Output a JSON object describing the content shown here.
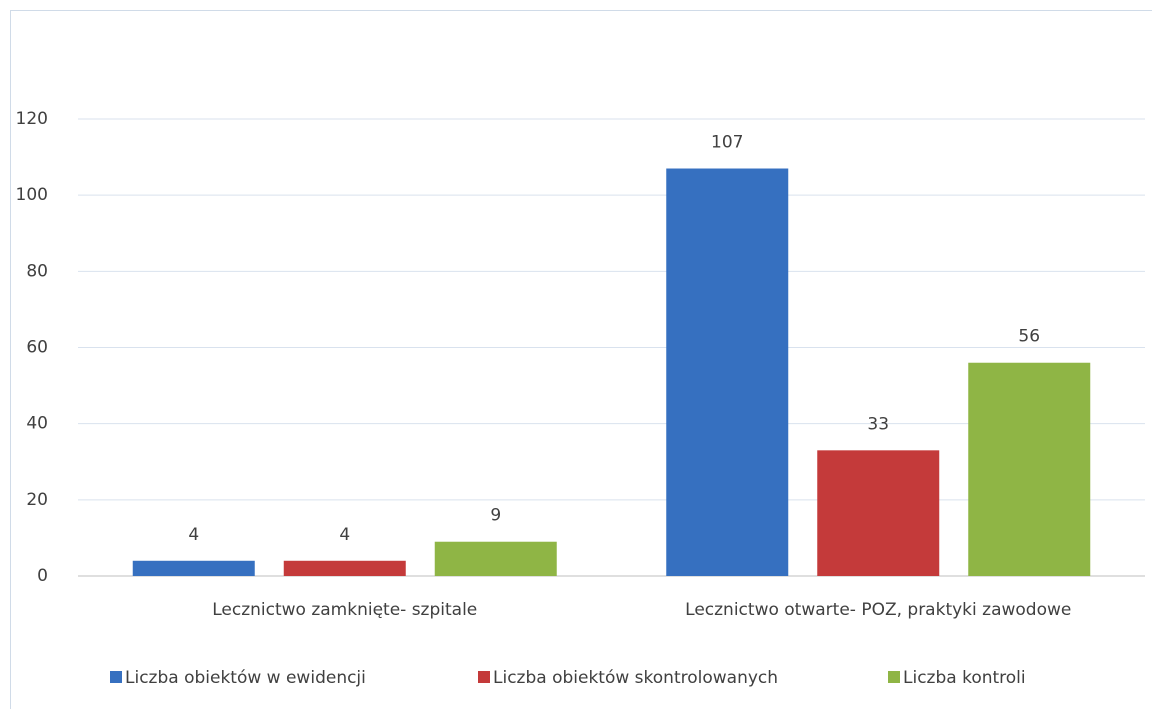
{
  "chart_data": {
    "type": "bar",
    "categories": [
      "Lecznictwo zamknięte- szpitale",
      "Lecznictwo otwarte- POZ, praktyki zawodowe"
    ],
    "series": [
      {
        "name": "Liczba obiektów w ewidencji",
        "color": "#3670c0",
        "values": [
          4,
          107
        ]
      },
      {
        "name": "Liczba obiektów skontrolowanych",
        "color": "#c43a3a",
        "values": [
          4,
          33
        ]
      },
      {
        "name": "Liczba kontroli",
        "color": "#8fb545",
        "values": [
          9,
          56
        ]
      }
    ],
    "ylim": [
      0,
      120
    ],
    "yticks": [
      0,
      20,
      40,
      60,
      80,
      100,
      120
    ],
    "grid": true,
    "legend": "bottom"
  }
}
